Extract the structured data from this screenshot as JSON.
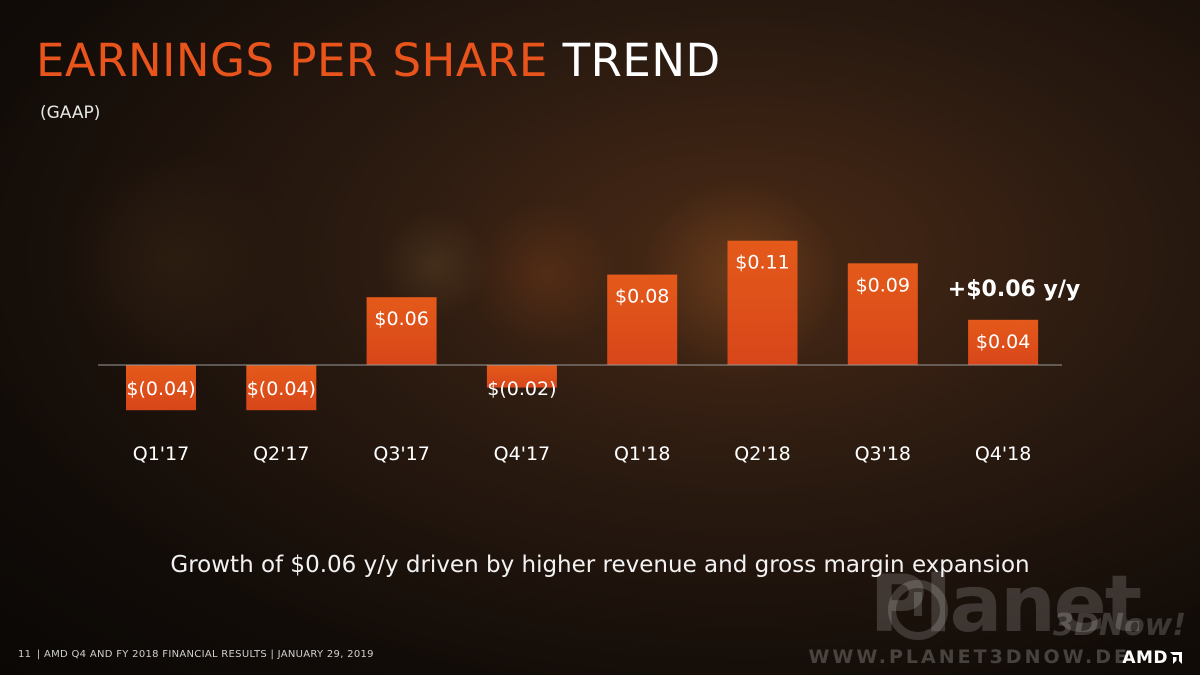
{
  "slide": {
    "title_accent": "EARNINGS PER SHARE",
    "title_rest": "TREND",
    "subtitle": "(GAAP)",
    "caption": "Growth of $0.06 y/y driven by higher revenue and gross margin expansion",
    "footer_page": "11",
    "footer_text": "| AMD Q4 AND FY 2018 FINANCIAL RESULTS | JANUARY 29, 2019",
    "watermark_brand": "Planet",
    "watermark_sub": "3DNow!",
    "watermark_url": "WWW.PLANET3DNOW.DE",
    "logo_text": "AMD"
  },
  "colors": {
    "accent": "#e8541b",
    "bar_top": "#e45a1a",
    "bar_bottom": "#d8461a",
    "axis": "#9a9a9a",
    "text": "#ffffff"
  },
  "chart_data": {
    "type": "bar",
    "title": "",
    "xlabel": "",
    "ylabel": "",
    "categories": [
      "Q1'17",
      "Q2'17",
      "Q3'17",
      "Q4'17",
      "Q1'18",
      "Q2'18",
      "Q3'18",
      "Q4'18"
    ],
    "values": [
      -0.04,
      -0.04,
      0.06,
      -0.02,
      0.08,
      0.11,
      0.09,
      0.04
    ],
    "labels": [
      "$(0.04)",
      "$(0.04)",
      "$0.06",
      "$(0.02)",
      "$0.08",
      "$0.11",
      "$0.09",
      "$0.04"
    ],
    "annotation": "+$0.06 y/y",
    "grid": false,
    "legend": "none"
  }
}
